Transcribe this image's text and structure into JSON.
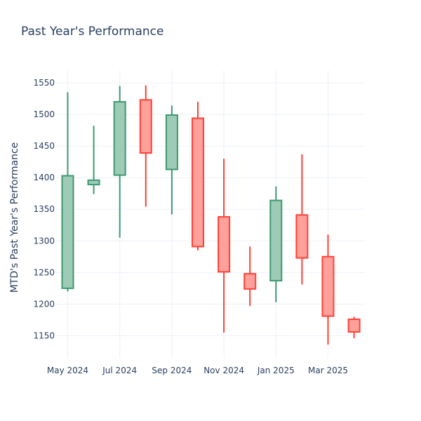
{
  "chart_data": {
    "type": "candlestick",
    "title": "Past Year's Performance",
    "xlabel": "",
    "ylabel": "MTD's Past Year's Performance",
    "ylim": [
      1115,
      1570
    ],
    "yticks": [
      1150,
      1200,
      1250,
      1300,
      1350,
      1400,
      1450,
      1500,
      1550
    ],
    "xticks": [
      {
        "label": "May 2024",
        "month_index": 0
      },
      {
        "label": "Jul 2024",
        "month_index": 2
      },
      {
        "label": "Sep 2024",
        "month_index": 4
      },
      {
        "label": "Nov 2024",
        "month_index": 6
      },
      {
        "label": "Jan 2025",
        "month_index": 8
      },
      {
        "label": "Mar 2025",
        "month_index": 10
      }
    ],
    "grid": true,
    "increasing_color": "#3d9970",
    "increasing_fill": "#9ecbb5",
    "decreasing_color": "#ff4136",
    "decreasing_fill": "#ffa09b",
    "candles": [
      {
        "month": "May 2024",
        "open": 1225,
        "high": 1535,
        "low": 1220,
        "close": 1403
      },
      {
        "month": "Jun 2024",
        "open": 1389,
        "high": 1482,
        "low": 1374,
        "close": 1396
      },
      {
        "month": "Jul 2024",
        "open": 1404,
        "high": 1545,
        "low": 1305,
        "close": 1520
      },
      {
        "month": "Aug 2024",
        "open": 1523,
        "high": 1546,
        "low": 1354,
        "close": 1439
      },
      {
        "month": "Sep 2024",
        "open": 1413,
        "high": 1514,
        "low": 1342,
        "close": 1499
      },
      {
        "month": "Oct 2024",
        "open": 1494,
        "high": 1520,
        "low": 1285,
        "close": 1291
      },
      {
        "month": "Nov 2024",
        "open": 1338,
        "high": 1430,
        "low": 1155,
        "close": 1251
      },
      {
        "month": "Dec 2024",
        "open": 1248,
        "high": 1291,
        "low": 1197,
        "close": 1224
      },
      {
        "month": "Jan 2025",
        "open": 1237,
        "high": 1386,
        "low": 1203,
        "close": 1364
      },
      {
        "month": "Feb 2025",
        "open": 1341,
        "high": 1437,
        "low": 1231,
        "close": 1273
      },
      {
        "month": "Mar 2025",
        "open": 1275,
        "high": 1310,
        "low": 1136,
        "close": 1181
      },
      {
        "month": "Apr 2025",
        "open": 1176,
        "high": 1180,
        "low": 1146,
        "close": 1156
      }
    ]
  }
}
